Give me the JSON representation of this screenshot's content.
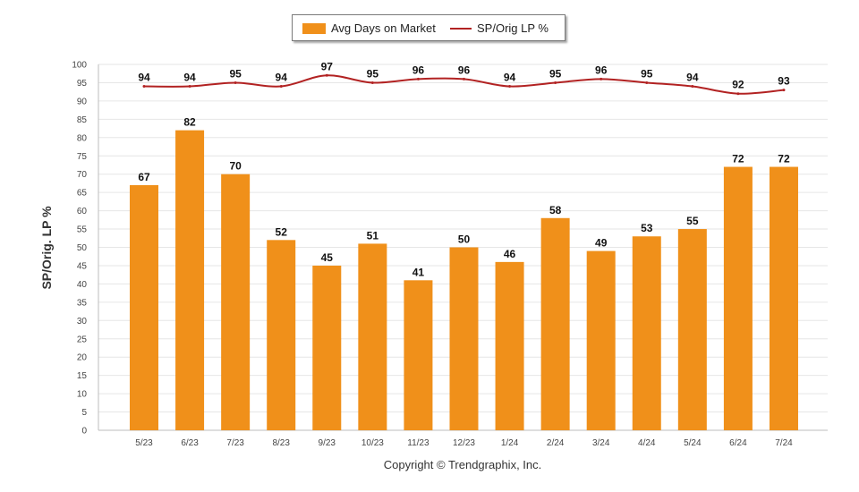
{
  "chart_data": {
    "type": "bar",
    "title": "",
    "xlabel": "",
    "ylabel": "SP/Orig. LP %",
    "ylim": [
      0,
      100
    ],
    "ytick_step": 5,
    "grid": true,
    "legend_position": "top-center",
    "categories": [
      "5/23",
      "6/23",
      "7/23",
      "8/23",
      "9/23",
      "10/23",
      "11/23",
      "12/23",
      "1/24",
      "2/24",
      "3/24",
      "4/24",
      "5/24",
      "6/24",
      "7/24"
    ],
    "series": [
      {
        "name": "Avg Days on Market",
        "kind": "bar",
        "color": "#f0901a",
        "values": [
          67,
          82,
          70,
          52,
          45,
          51,
          41,
          50,
          46,
          58,
          49,
          53,
          55,
          72,
          72
        ]
      },
      {
        "name": "SP/Orig LP %",
        "kind": "line",
        "color": "#b22222",
        "values": [
          94,
          94,
          95,
          94,
          97,
          95,
          96,
          96,
          94,
          95,
          96,
          95,
          94,
          92,
          93
        ]
      }
    ]
  },
  "footer": {
    "copyright": "Copyright © Trendgraphix, Inc."
  }
}
